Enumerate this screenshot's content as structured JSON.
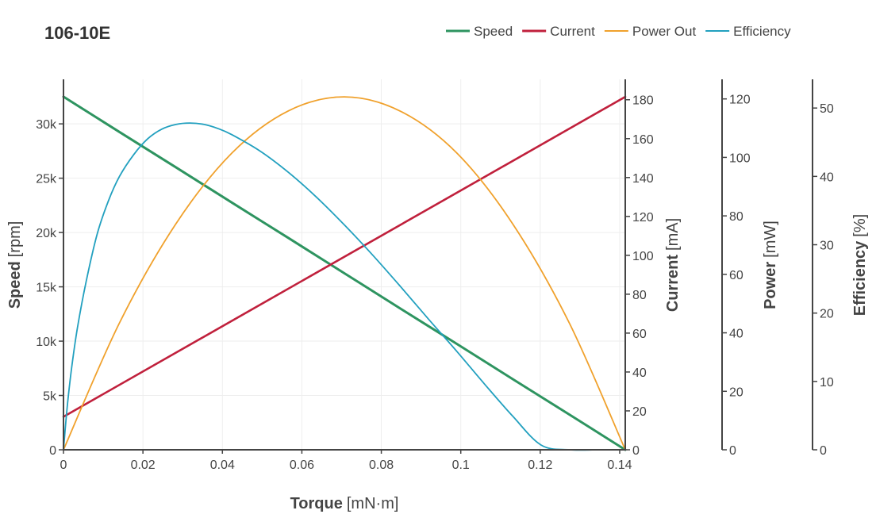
{
  "chart_data": {
    "type": "line",
    "title": "106-10E",
    "xaxis": {
      "label": "Torque",
      "unit": "[mN·m]",
      "range": [
        0,
        0.1414
      ],
      "ticks": [
        0,
        0.02,
        0.04,
        0.06,
        0.08,
        0.1,
        0.12,
        0.14
      ],
      "tick_labels": [
        "0",
        "0.02",
        "0.04",
        "0.06",
        "0.08",
        "0.1",
        "0.12",
        "0.14"
      ]
    },
    "yaxes": [
      {
        "id": "speed",
        "label": "Speed",
        "unit": "[rpm]",
        "range": [
          0,
          34100
        ],
        "ticks": [
          0,
          5000,
          10000,
          15000,
          20000,
          25000,
          30000
        ],
        "tick_labels": [
          "0",
          "5k",
          "10k",
          "15k",
          "20k",
          "25k",
          "30k"
        ]
      },
      {
        "id": "current",
        "label": "Current",
        "unit": "[mA]",
        "range": [
          0,
          190.5
        ],
        "ticks": [
          0,
          20,
          40,
          60,
          80,
          100,
          120,
          140,
          160,
          180
        ],
        "tick_labels": [
          "0",
          "20",
          "40",
          "60",
          "80",
          "100",
          "120",
          "140",
          "160",
          "180"
        ]
      },
      {
        "id": "power",
        "label": "Power",
        "unit": "[mW]",
        "range": [
          0,
          126.7
        ],
        "ticks": [
          0,
          20,
          40,
          60,
          80,
          100,
          120
        ],
        "tick_labels": [
          "0",
          "20",
          "40",
          "60",
          "80",
          "100",
          "120"
        ]
      },
      {
        "id": "efficiency",
        "label": "Efficiency",
        "unit": "[%]",
        "range": [
          0,
          54.2
        ],
        "ticks": [
          0,
          10,
          20,
          30,
          40,
          50
        ],
        "tick_labels": [
          "0",
          "10",
          "20",
          "30",
          "40",
          "50"
        ]
      }
    ],
    "series": [
      {
        "name": "Speed",
        "axis": "speed",
        "color": "#2e9460",
        "x": [
          0,
          0.0141,
          0.0283,
          0.0424,
          0.0566,
          0.0707,
          0.0848,
          0.099,
          0.1131,
          0.1273,
          0.1414
        ],
        "y": [
          32500,
          29250,
          26000,
          22750,
          19500,
          16250,
          13000,
          9750,
          6500,
          3250,
          0
        ]
      },
      {
        "name": "Current",
        "axis": "current",
        "color": "#c0203c",
        "x": [
          0,
          0.1414
        ],
        "y": [
          17,
          181.5
        ]
      },
      {
        "name": "Power Out",
        "axis": "power",
        "color": "#f0a12c",
        "x": [
          0,
          0.0141,
          0.0283,
          0.0424,
          0.0566,
          0.0707,
          0.0848,
          0.099,
          0.1131,
          0.1273,
          0.1414
        ],
        "y": [
          0,
          43.4,
          77.3,
          101.5,
          115.9,
          120.7,
          115.8,
          101.5,
          77.2,
          43.4,
          0
        ]
      },
      {
        "name": "Efficiency",
        "axis": "efficiency",
        "color": "#22a0bf",
        "x": [
          0,
          0.0004,
          0.0011,
          0.0021,
          0.0035,
          0.0057,
          0.0085,
          0.0113,
          0.0141,
          0.0177,
          0.0212,
          0.0247,
          0.0283,
          0.0318,
          0.0354,
          0.0389,
          0.0424,
          0.0495,
          0.0566,
          0.0636,
          0.0707,
          0.0778,
          0.0848,
          0.0919,
          0.099,
          0.106,
          0.1131,
          0.1202,
          0.1273,
          0.1343,
          0.1379,
          0.1414
        ],
        "y": [
          0,
          2.8,
          7.2,
          12.2,
          17.8,
          24.6,
          31.6,
          36.4,
          40.0,
          43.2,
          45.5,
          46.9,
          47.6,
          47.8,
          47.6,
          47.0,
          46.1,
          43.7,
          40.6,
          37.0,
          32.9,
          28.5,
          23.9,
          19.1,
          14.4,
          9.6,
          4.9,
          0.7,
          0,
          0,
          0,
          0
        ]
      }
    ]
  }
}
